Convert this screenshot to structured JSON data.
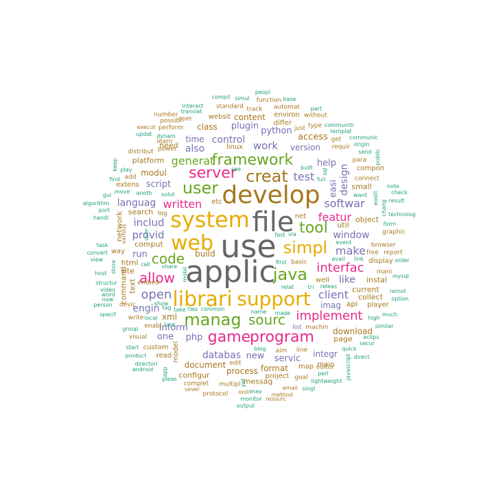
{
  "palette": {
    "teal": "#1b9e77",
    "orange": "#d95f02",
    "purple": "#7570b3",
    "magenta": "#e7298a",
    "green": "#66a61e",
    "gold": "#e6ab02",
    "brown": "#a6761d",
    "gray": "#666666"
  },
  "words": [
    {
      "text": "use"
    },
    {
      "text": "applic"
    },
    {
      "text": "file"
    },
    {
      "text": "develop"
    },
    {
      "text": "system"
    },
    {
      "text": "web"
    },
    {
      "text": "librari"
    },
    {
      "text": "support"
    },
    {
      "text": "user"
    },
    {
      "text": "simpl"
    },
    {
      "text": "creat"
    },
    {
      "text": "program"
    },
    {
      "text": "manag"
    },
    {
      "text": "java"
    },
    {
      "text": "game"
    },
    {
      "text": "framework"
    },
    {
      "text": "allow"
    },
    {
      "text": "tool"
    },
    {
      "text": "server"
    },
    {
      "text": "sourc"
    },
    {
      "text": "implement"
    },
    {
      "text": "code"
    },
    {
      "text": "interfac"
    },
    {
      "text": "open"
    },
    {
      "text": "softwar"
    },
    {
      "text": "featur"
    },
    {
      "text": "client"
    },
    {
      "text": "written"
    },
    {
      "text": "generat"
    },
    {
      "text": "make"
    },
    {
      "text": "window"
    },
    {
      "text": "test"
    },
    {
      "text": "includ"
    },
    {
      "text": "work"
    },
    {
      "text": "databas"
    },
    {
      "text": "provid"
    },
    {
      "text": "engin"
    },
    {
      "text": "script"
    },
    {
      "text": "design"
    },
    {
      "text": "like"
    },
    {
      "text": "control"
    },
    {
      "text": "also"
    },
    {
      "text": "languag"
    },
    {
      "text": "run"
    },
    {
      "text": "access"
    },
    {
      "text": "python"
    },
    {
      "text": "plugin"
    },
    {
      "text": "modul"
    },
    {
      "text": "inform"
    },
    {
      "text": "new"
    },
    {
      "text": "php"
    },
    {
      "text": "one"
    },
    {
      "text": "help"
    },
    {
      "text": "version"
    },
    {
      "text": "servic"
    },
    {
      "text": "time"
    },
    {
      "text": "integr"
    },
    {
      "text": "class"
    },
    {
      "text": "easi"
    },
    {
      "text": "imag"
    },
    {
      "text": "document"
    },
    {
      "text": "process"
    },
    {
      "text": "download"
    },
    {
      "text": "content"
    },
    {
      "text": "build"
    },
    {
      "text": "format"
    },
    {
      "text": "xml"
    },
    {
      "text": "current"
    },
    {
      "text": "object"
    },
    {
      "text": "text"
    },
    {
      "text": "site"
    },
    {
      "text": "need"
    },
    {
      "text": "network"
    },
    {
      "text": "platform"
    },
    {
      "text": "configur"
    },
    {
      "text": "messag"
    },
    {
      "text": "command"
    },
    {
      "text": "websit"
    },
    {
      "text": "html"
    },
    {
      "text": "util"
    },
    {
      "text": "instal"
    },
    {
      "text": "page"
    },
    {
      "text": "api"
    },
    {
      "text": "collect"
    },
    {
      "text": "differ"
    },
    {
      "text": "search"
    },
    {
      "text": "display"
    },
    {
      "text": "comput"
    },
    {
      "text": "extens"
    },
    {
      "text": "linux"
    },
    {
      "text": "custom"
    },
    {
      "text": "read"
    },
    {
      "text": "project"
    },
    {
      "text": "small"
    },
    {
      "text": "map"
    },
    {
      "text": "main"
    },
    {
      "text": "player"
    },
    {
      "text": "environ"
    },
    {
      "text": "compon"
    },
    {
      "text": "etc"
    },
    {
      "text": "well"
    },
    {
      "text": "net"
    },
    {
      "text": "model"
    },
    {
      "text": "way"
    },
    {
      "text": "graphic"
    },
    {
      "text": "distribut"
    },
    {
      "text": "perform"
    },
    {
      "text": "visual"
    },
    {
      "text": "requir"
    },
    {
      "text": "line"
    },
    {
      "text": "complet"
    },
    {
      "text": "aim"
    },
    {
      "text": "basic"
    },
    {
      "text": "edit"
    },
    {
      "text": "multipl"
    },
    {
      "text": "goal"
    },
    {
      "text": "free"
    },
    {
      "text": "browser"
    },
    {
      "text": "connect"
    },
    {
      "text": "mani"
    },
    {
      "text": "standard"
    },
    {
      "text": "learn"
    },
    {
      "text": "para"
    },
    {
      "text": "add"
    },
    {
      "text": "protocol"
    },
    {
      "text": "automat"
    },
    {
      "text": "function"
    },
    {
      "text": "devic"
    },
    {
      "text": "number"
    },
    {
      "text": "write"
    },
    {
      "text": "without"
    },
    {
      "text": "get"
    },
    {
      "text": "type"
    },
    {
      "text": "editor"
    },
    {
      "text": "report"
    },
    {
      "text": "enabl"
    },
    {
      "text": "machin"
    },
    {
      "text": "event"
    },
    {
      "text": "just"
    },
    {
      "text": "embed"
    },
    {
      "text": "track"
    },
    {
      "text": "oper"
    },
    {
      "text": "execut"
    },
    {
      "text": "possibl"
    },
    {
      "text": "log"
    },
    {
      "text": "power"
    },
    {
      "text": "onlin"
    },
    {
      "text": "email"
    },
    {
      "text": "method"
    },
    {
      "text": "sever"
    },
    {
      "text": "resourc"
    },
    {
      "text": "monitor"
    },
    {
      "text": "output"
    },
    {
      "text": "list"
    },
    {
      "text": "made"
    },
    {
      "text": "name"
    },
    {
      "text": "view"
    },
    {
      "text": "convert"
    },
    {
      "text": "port"
    },
    {
      "text": "algorithm"
    },
    {
      "text": "gui"
    },
    {
      "text": "find"
    },
    {
      "text": "play"
    },
    {
      "text": "keep"
    },
    {
      "text": "move"
    },
    {
      "text": "anoth"
    },
    {
      "text": "solut"
    },
    {
      "text": "share"
    },
    {
      "text": "call"
    },
    {
      "text": "first"
    },
    {
      "text": "store"
    },
    {
      "text": "host"
    },
    {
      "text": "task"
    },
    {
      "text": "video"
    },
    {
      "text": "word"
    },
    {
      "text": "now"
    },
    {
      "text": "person"
    },
    {
      "text": "specif"
    },
    {
      "text": "handl"
    },
    {
      "text": "structur"
    },
    {
      "text": "group"
    },
    {
      "text": "start"
    },
    {
      "text": "product"
    },
    {
      "text": "directori"
    },
    {
      "text": "android"
    },
    {
      "text": "pleas"
    },
    {
      "text": "show"
    },
    {
      "text": "local"
    },
    {
      "text": "tag"
    },
    {
      "text": "look"
    },
    {
      "text": "take"
    },
    {
      "text": "two"
    },
    {
      "text": "common"
    },
    {
      "text": "blog"
    },
    {
      "text": "perl"
    },
    {
      "text": "lightweight"
    },
    {
      "text": "singl"
    },
    {
      "text": "quick"
    },
    {
      "text": "direct"
    },
    {
      "text": "javascript"
    },
    {
      "text": "eclips"
    },
    {
      "text": "similar"
    },
    {
      "text": "secur"
    },
    {
      "text": "high"
    },
    {
      "text": "much"
    },
    {
      "text": "remot"
    },
    {
      "text": "option"
    },
    {
      "text": "mysql"
    },
    {
      "text": "order"
    },
    {
      "text": "form"
    },
    {
      "text": "technolog"
    },
    {
      "text": "result"
    },
    {
      "text": "chang"
    },
    {
      "text": "check"
    },
    {
      "text": "note"
    },
    {
      "text": "want"
    },
    {
      "text": "easili"
    },
    {
      "text": "send"
    },
    {
      "text": "public"
    },
    {
      "text": "origin"
    },
    {
      "text": "communic"
    },
    {
      "text": "communiti"
    },
    {
      "text": "templat"
    },
    {
      "text": "full"
    },
    {
      "text": "sql"
    },
    {
      "text": "built"
    },
    {
      "text": "see"
    },
    {
      "text": "dynam"
    },
    {
      "text": "updat"
    },
    {
      "text": "relat"
    },
    {
      "text": "tri"
    },
    {
      "text": "releas"
    },
    {
      "text": "link"
    },
    {
      "text": "avail"
    },
    {
      "text": "fast"
    },
    {
      "text": "via"
    },
    {
      "text": "mobil"
    },
    {
      "text": "user"
    },
    {
      "text": "various"
    },
    {
      "text": "interact"
    },
    {
      "text": "compil"
    },
    {
      "text": "simul"
    },
    {
      "text": "peopl"
    },
    {
      "text": "base"
    },
    {
      "text": "translat"
    },
    {
      "text": "part"
    },
    {
      "text": "may"
    },
    {
      "text": "yet"
    },
    {
      "text": "app"
    }
  ]
}
